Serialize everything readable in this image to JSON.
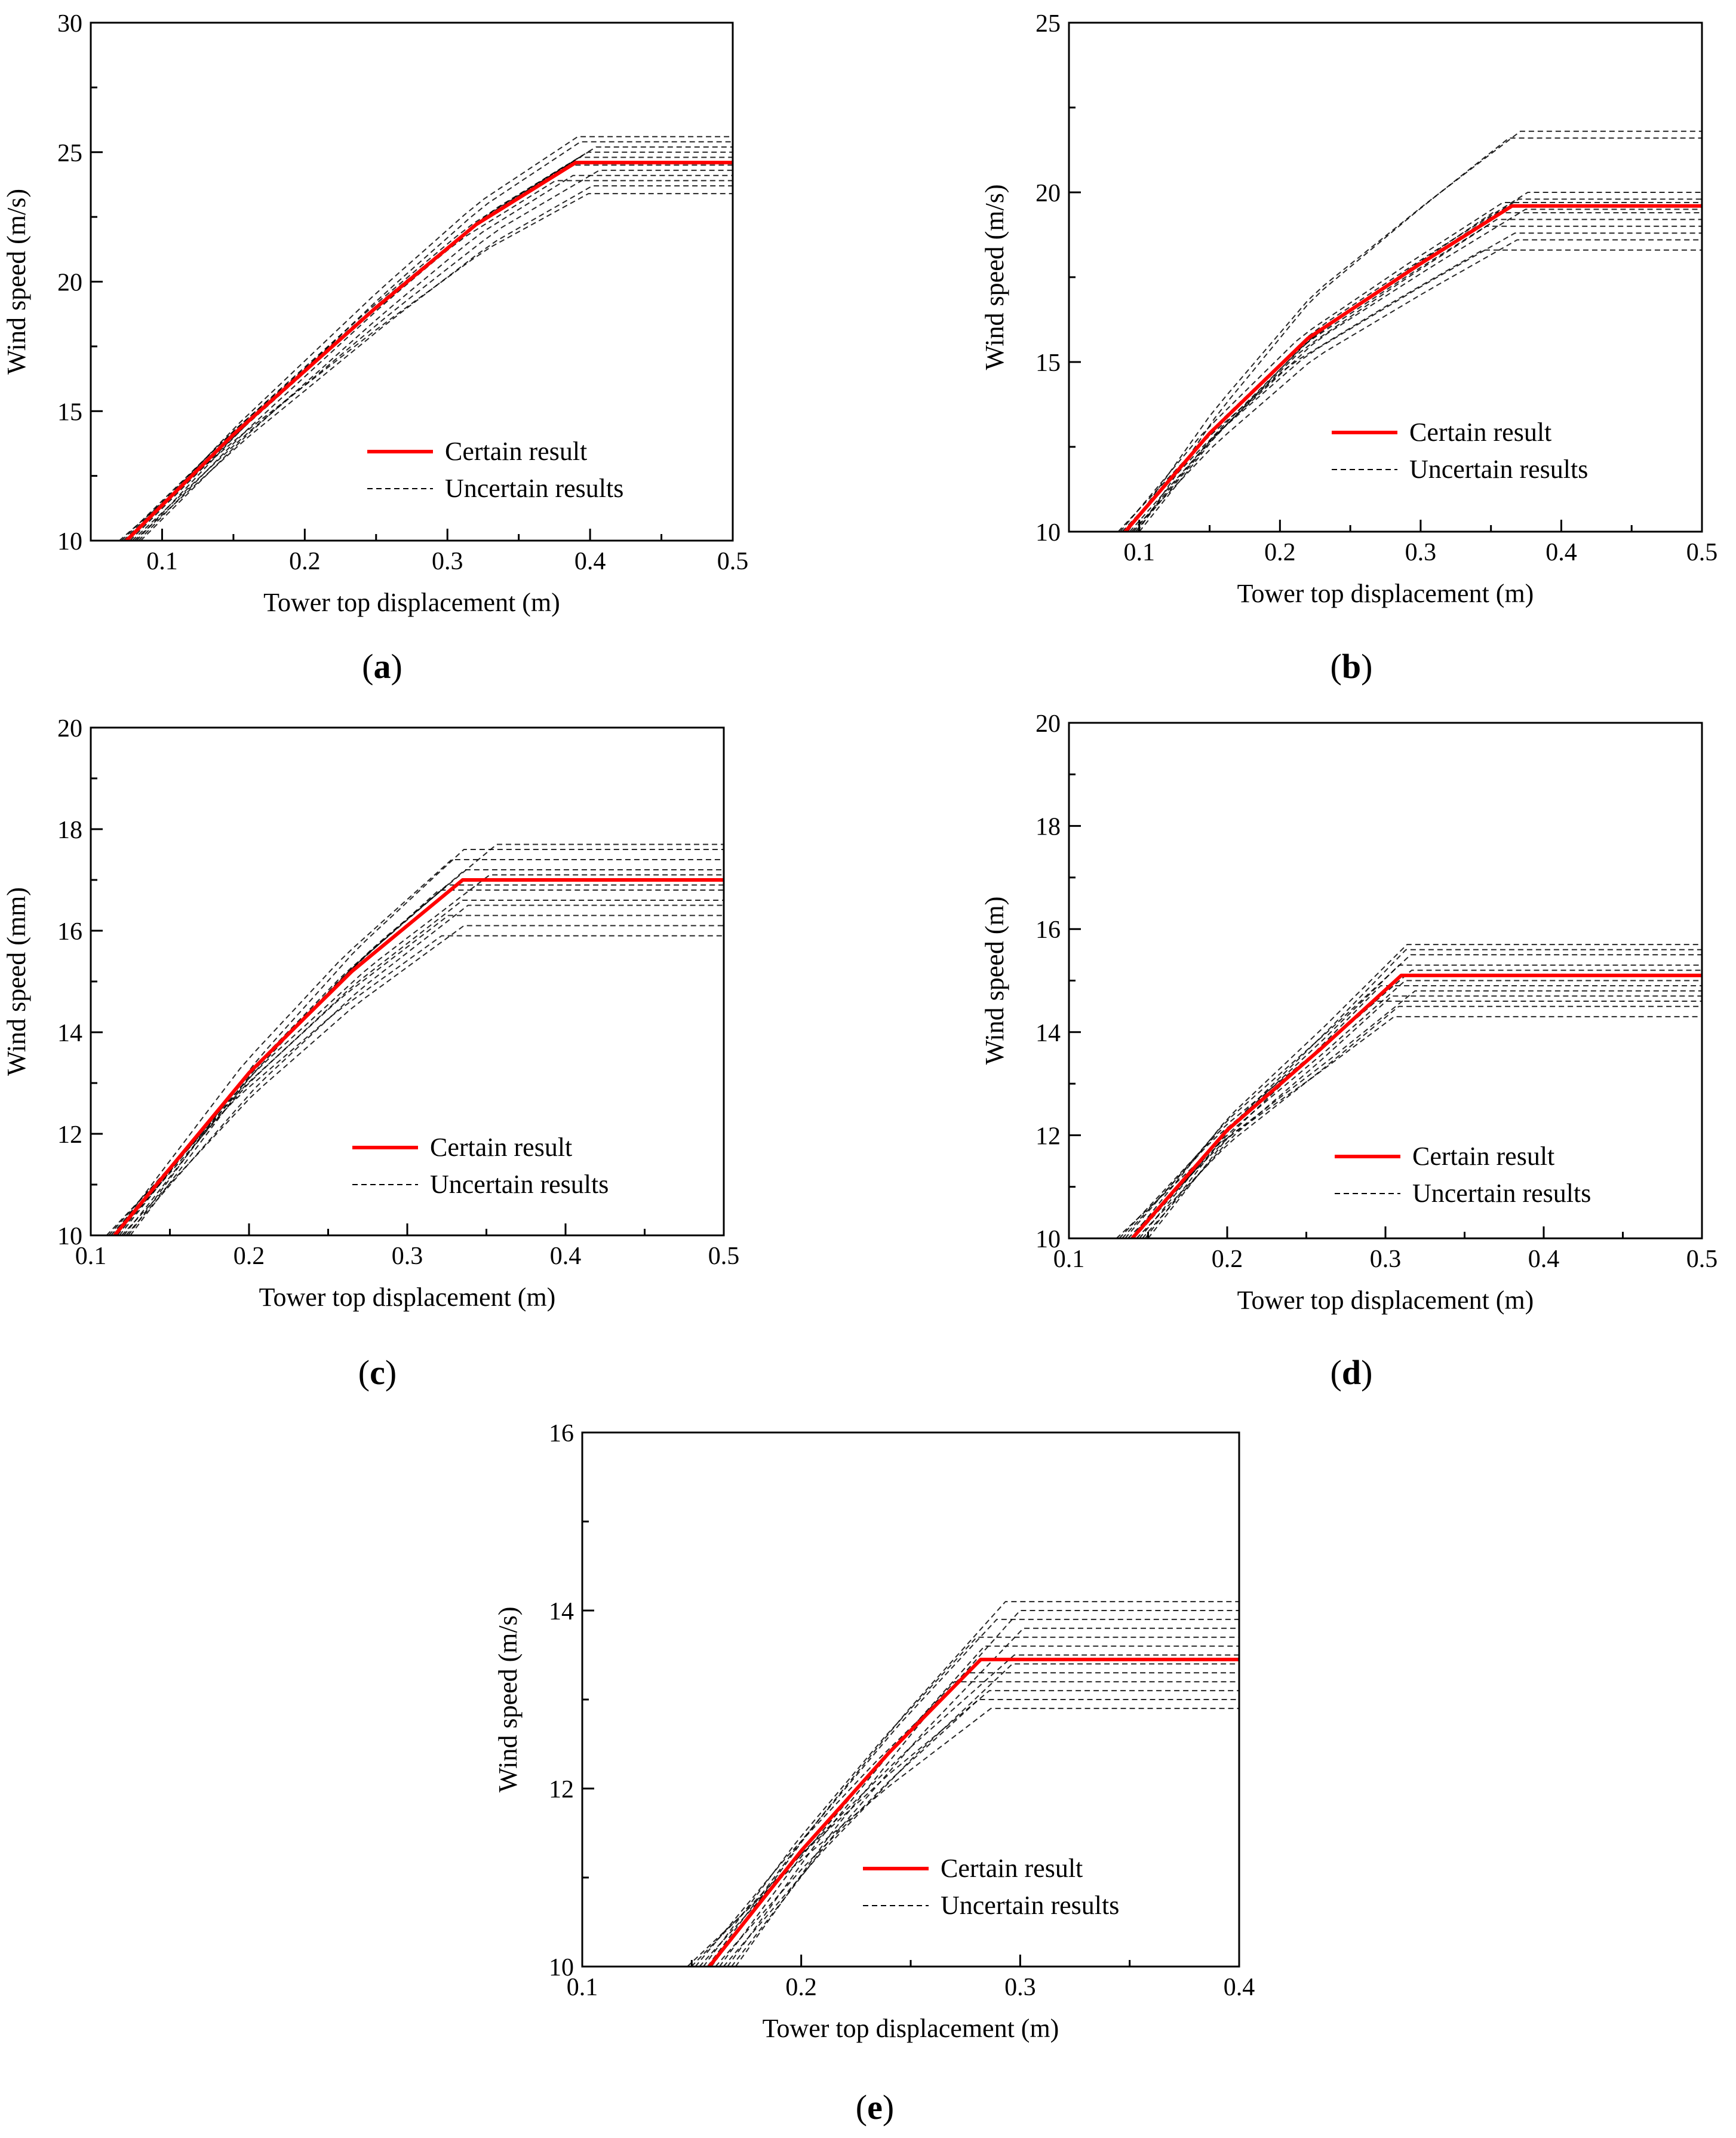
{
  "figure": {
    "legend": {
      "certain_label": "Certain result",
      "uncertain_label": "Uncertain results"
    },
    "colors": {
      "certain": "#ff0000",
      "uncertain": "#000000",
      "axis": "#000000"
    }
  },
  "chart_data": [
    {
      "type": "line",
      "panel": "(a)",
      "panel_letter": "a",
      "xlabel": "Tower top displacement (m)",
      "ylabel": "Wind speed (m/s)",
      "xlim": [
        0.05,
        0.5
      ],
      "ylim": [
        10,
        30
      ],
      "xticks": [
        0.1,
        0.2,
        0.3,
        0.4,
        0.5
      ],
      "xtick_labels": [
        "0.1",
        "0.2",
        "0.3",
        "0.4",
        "0.5"
      ],
      "yticks": [
        10,
        15,
        20,
        25,
        30
      ],
      "ytick_labels": [
        "10",
        "15",
        "20",
        "25",
        "30"
      ],
      "legend": [
        "Certain result",
        "Uncertain results"
      ],
      "certain": {
        "name": "Certain result",
        "x": [
          0.075,
          0.15,
          0.25,
          0.32,
          0.39,
          0.5
        ],
        "y": [
          10,
          14.1,
          19.0,
          22.2,
          24.6,
          24.6
        ]
      },
      "uncertain": {
        "name": "Uncertain results",
        "plateau_y": [
          23.4,
          23.7,
          23.9,
          24.1,
          24.3,
          24.5,
          24.8,
          25.0,
          25.2,
          25.4,
          25.6
        ],
        "x_start": [
          0.07,
          0.085
        ],
        "x_knee": [
          0.37,
          0.42
        ]
      }
    },
    {
      "type": "line",
      "panel": "(b)",
      "panel_letter": "b",
      "xlabel": "Tower top displacement (m)",
      "ylabel": "Wind speed (m/s)",
      "xlim": [
        0.05,
        0.5
      ],
      "ylim": [
        10,
        25
      ],
      "xticks": [
        0.1,
        0.2,
        0.3,
        0.4,
        0.5
      ],
      "xtick_labels": [
        "0.1",
        "0.2",
        "0.3",
        "0.4",
        "0.5"
      ],
      "yticks": [
        10,
        15,
        20,
        25
      ],
      "ytick_labels": [
        "10",
        "15",
        "20",
        "25"
      ],
      "legend": [
        "Certain result",
        "Uncertain results"
      ],
      "certain": {
        "name": "Certain result",
        "x": [
          0.09,
          0.15,
          0.22,
          0.3,
          0.365,
          0.5
        ],
        "y": [
          10,
          12.9,
          15.7,
          17.9,
          19.6,
          19.6
        ]
      },
      "uncertain": {
        "name": "Uncertain results",
        "plateau_y": [
          18.3,
          18.6,
          18.8,
          19.0,
          19.2,
          19.4,
          19.5,
          19.7,
          19.8,
          20.0,
          21.6,
          21.8
        ],
        "x_start": [
          0.085,
          0.1
        ],
        "x_knee": [
          0.34,
          0.39
        ]
      }
    },
    {
      "type": "line",
      "panel": "(c)",
      "panel_letter": "c",
      "xlabel": "Tower top displacement (m)",
      "ylabel": "Wind speed (mm)",
      "xlim": [
        0.1,
        0.5
      ],
      "ylim": [
        10,
        20
      ],
      "xticks": [
        0.1,
        0.2,
        0.3,
        0.4,
        0.5
      ],
      "xtick_labels": [
        "0.1",
        "0.2",
        "0.3",
        "0.4",
        "0.5"
      ],
      "yticks": [
        10,
        12,
        14,
        16,
        18,
        20
      ],
      "ytick_labels": [
        "10",
        "12",
        "14",
        "16",
        "18",
        "20"
      ],
      "legend": [
        "Certain result",
        "Uncertain results"
      ],
      "certain": {
        "name": "Certain result",
        "x": [
          0.115,
          0.2,
          0.265,
          0.335,
          0.5
        ],
        "y": [
          10,
          13.2,
          15.2,
          17.0,
          17.0
        ]
      },
      "uncertain": {
        "name": "Uncertain results",
        "plateau_y": [
          15.9,
          16.1,
          16.3,
          16.5,
          16.6,
          16.8,
          16.9,
          17.1,
          17.2,
          17.4,
          17.6,
          17.7
        ],
        "x_start": [
          0.11,
          0.125
        ],
        "x_knee": [
          0.31,
          0.36
        ]
      }
    },
    {
      "type": "line",
      "panel": "(d)",
      "panel_letter": "d",
      "xlabel": "Tower top displacement (m)",
      "ylabel": "Wind speed (m)",
      "xlim": [
        0.1,
        0.5
      ],
      "ylim": [
        10,
        20
      ],
      "xticks": [
        0.1,
        0.2,
        0.3,
        0.4,
        0.5
      ],
      "xtick_labels": [
        "0.1",
        "0.2",
        "0.3",
        "0.4",
        "0.5"
      ],
      "yticks": [
        10,
        12,
        14,
        16,
        18,
        20
      ],
      "ytick_labels": [
        "10",
        "12",
        "14",
        "16",
        "18",
        "20"
      ],
      "legend": [
        "Certain result",
        "Uncertain results"
      ],
      "certain": {
        "name": "Certain result",
        "x": [
          0.14,
          0.2,
          0.26,
          0.31,
          0.5
        ],
        "y": [
          10,
          12.1,
          13.7,
          15.1,
          15.1
        ]
      },
      "uncertain": {
        "name": "Uncertain results",
        "plateau_y": [
          14.3,
          14.5,
          14.6,
          14.7,
          14.8,
          14.9,
          15.0,
          15.2,
          15.3,
          15.5,
          15.6,
          15.7
        ],
        "x_start": [
          0.13,
          0.15
        ],
        "x_knee": [
          0.29,
          0.33
        ]
      }
    },
    {
      "type": "line",
      "panel": "(e)",
      "panel_letter": "e",
      "xlabel": "Tower top displacement (m)",
      "ylabel": "Wind speed (m/s)",
      "xlim": [
        0.1,
        0.4
      ],
      "ylim": [
        10,
        16
      ],
      "xticks": [
        0.1,
        0.2,
        0.3,
        0.4
      ],
      "xtick_labels": [
        "0.1",
        "0.2",
        "0.3",
        "0.4"
      ],
      "yticks": [
        10,
        12,
        14,
        16
      ],
      "ytick_labels": [
        "10",
        "12",
        "14",
        "16"
      ],
      "legend": [
        "Certain result",
        "Uncertain results"
      ],
      "certain": {
        "name": "Certain result",
        "x": [
          0.158,
          0.2,
          0.24,
          0.282,
          0.4
        ],
        "y": [
          10,
          11.3,
          12.4,
          13.45,
          13.45
        ]
      },
      "uncertain": {
        "name": "Uncertain results",
        "plateau_y": [
          12.9,
          13.0,
          13.1,
          13.2,
          13.3,
          13.4,
          13.5,
          13.6,
          13.7,
          13.8,
          13.9,
          14.0,
          14.1
        ],
        "x_start": [
          0.148,
          0.17
        ],
        "x_knee": [
          0.265,
          0.305
        ]
      }
    }
  ]
}
